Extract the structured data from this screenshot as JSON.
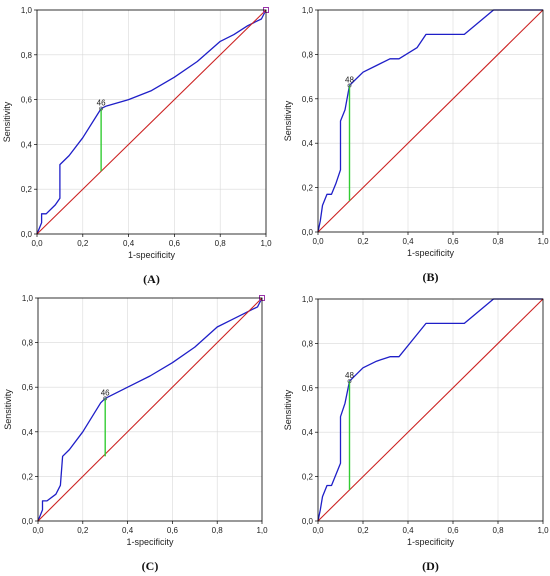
{
  "chart_data": [
    {
      "type": "line",
      "panel_label": "(A)",
      "xlabel": "1-specificity",
      "ylabel": "Sensitivity",
      "xlim": [
        0,
        1
      ],
      "ylim": [
        0,
        1
      ],
      "xticks": [
        "0,0",
        "0,2",
        "0,4",
        "0,6",
        "0,8",
        "1,0"
      ],
      "yticks": [
        "0,0",
        "0,2",
        "0,4",
        "0,6",
        "0,8",
        "1,0"
      ],
      "grid": true,
      "series": [
        {
          "role": "roc",
          "color": "#1f1fc8",
          "x": [
            0,
            0.02,
            0.02,
            0.04,
            0.08,
            0.1,
            0.1,
            0.14,
            0.2,
            0.28,
            0.3,
            0.4,
            0.5,
            0.6,
            0.7,
            0.8,
            0.86,
            0.92,
            0.96,
            0.98,
            1.0
          ],
          "y": [
            0,
            0.05,
            0.09,
            0.09,
            0.13,
            0.16,
            0.31,
            0.35,
            0.43,
            0.56,
            0.57,
            0.6,
            0.64,
            0.7,
            0.77,
            0.86,
            0.89,
            0.93,
            0.95,
            0.96,
            1.0
          ]
        },
        {
          "role": "reference",
          "color": "#cc2222",
          "x": [
            0,
            1
          ],
          "y": [
            0,
            1
          ]
        }
      ],
      "cutoff": {
        "label": "46",
        "x": 0.28,
        "y_low": 0.28,
        "y_high": 0.56,
        "color": "#33cc33"
      },
      "end_marker": {
        "x": 1.0,
        "y": 1.0,
        "color": "#9933aa"
      }
    },
    {
      "type": "line",
      "panel_label": "(B)",
      "xlabel": "1-specificity",
      "ylabel": "Sensitivity",
      "xlim": [
        0,
        1
      ],
      "ylim": [
        0,
        1
      ],
      "xticks": [
        "0,0",
        "0,2",
        "0,4",
        "0,6",
        "0,8",
        "1,0"
      ],
      "yticks": [
        "0,0",
        "0,2",
        "0,4",
        "0,6",
        "0,8",
        "1,0"
      ],
      "grid": true,
      "series": [
        {
          "role": "roc",
          "color": "#1f1fc8",
          "x": [
            0,
            0.01,
            0.02,
            0.04,
            0.06,
            0.08,
            0.1,
            0.1,
            0.12,
            0.14,
            0.16,
            0.2,
            0.26,
            0.32,
            0.36,
            0.44,
            0.48,
            0.55,
            0.65,
            0.78,
            0.85,
            1.0
          ],
          "y": [
            0,
            0.05,
            0.12,
            0.17,
            0.17,
            0.22,
            0.28,
            0.5,
            0.55,
            0.66,
            0.68,
            0.72,
            0.75,
            0.78,
            0.78,
            0.83,
            0.89,
            0.89,
            0.89,
            1.0,
            1.0,
            1.0
          ]
        },
        {
          "role": "reference",
          "color": "#cc2222",
          "x": [
            0,
            1
          ],
          "y": [
            0,
            1
          ]
        }
      ],
      "cutoff": {
        "label": "48",
        "x": 0.14,
        "y_low": 0.14,
        "y_high": 0.66,
        "color": "#33cc33"
      }
    },
    {
      "type": "line",
      "panel_label": "(C)",
      "xlabel": "1-specificity",
      "ylabel": "Sensitivity",
      "xlim": [
        0,
        1
      ],
      "ylim": [
        0,
        1
      ],
      "xticks": [
        "0,0",
        "0,2",
        "0,4",
        "0,6",
        "0,8",
        "1,0"
      ],
      "yticks": [
        "0,0",
        "0,2",
        "0,4",
        "0,6",
        "0,8",
        "1,0"
      ],
      "grid": true,
      "series": [
        {
          "role": "roc",
          "color": "#1f1fc8",
          "x": [
            0,
            0.02,
            0.02,
            0.04,
            0.08,
            0.1,
            0.11,
            0.14,
            0.2,
            0.28,
            0.3,
            0.4,
            0.5,
            0.6,
            0.7,
            0.8,
            0.86,
            0.92,
            0.96,
            0.98,
            1.0
          ],
          "y": [
            0,
            0.05,
            0.09,
            0.09,
            0.12,
            0.16,
            0.29,
            0.32,
            0.4,
            0.53,
            0.55,
            0.6,
            0.65,
            0.71,
            0.78,
            0.87,
            0.9,
            0.93,
            0.95,
            0.96,
            1.0
          ]
        },
        {
          "role": "reference",
          "color": "#cc2222",
          "x": [
            0,
            1
          ],
          "y": [
            0,
            1
          ]
        }
      ],
      "cutoff": {
        "label": "46",
        "x": 0.3,
        "y_low": 0.29,
        "y_high": 0.55,
        "color": "#33cc33"
      },
      "end_marker": {
        "x": 1.0,
        "y": 1.0,
        "color": "#9933aa"
      }
    },
    {
      "type": "line",
      "panel_label": "(D)",
      "xlabel": "1-specificity",
      "ylabel": "Sensitivity",
      "xlim": [
        0,
        1
      ],
      "ylim": [
        0,
        1
      ],
      "xticks": [
        "0,0",
        "0,2",
        "0,4",
        "0,6",
        "0,8",
        "1,0"
      ],
      "yticks": [
        "0,0",
        "0,2",
        "0,4",
        "0,6",
        "0,8",
        "1,0"
      ],
      "grid": true,
      "series": [
        {
          "role": "roc",
          "color": "#1f1fc8",
          "x": [
            0,
            0.01,
            0.02,
            0.04,
            0.06,
            0.08,
            0.1,
            0.1,
            0.12,
            0.14,
            0.16,
            0.2,
            0.26,
            0.32,
            0.36,
            0.44,
            0.48,
            0.55,
            0.65,
            0.78,
            0.85,
            1.0
          ],
          "y": [
            0,
            0.05,
            0.11,
            0.16,
            0.16,
            0.21,
            0.26,
            0.47,
            0.53,
            0.63,
            0.65,
            0.69,
            0.72,
            0.74,
            0.74,
            0.84,
            0.89,
            0.89,
            0.89,
            1.0,
            1.0,
            1.0
          ]
        },
        {
          "role": "reference",
          "color": "#cc2222",
          "x": [
            0,
            1
          ],
          "y": [
            0,
            1
          ]
        }
      ],
      "cutoff": {
        "label": "48",
        "x": 0.14,
        "y_low": 0.14,
        "y_high": 0.63,
        "color": "#33cc33"
      }
    }
  ]
}
